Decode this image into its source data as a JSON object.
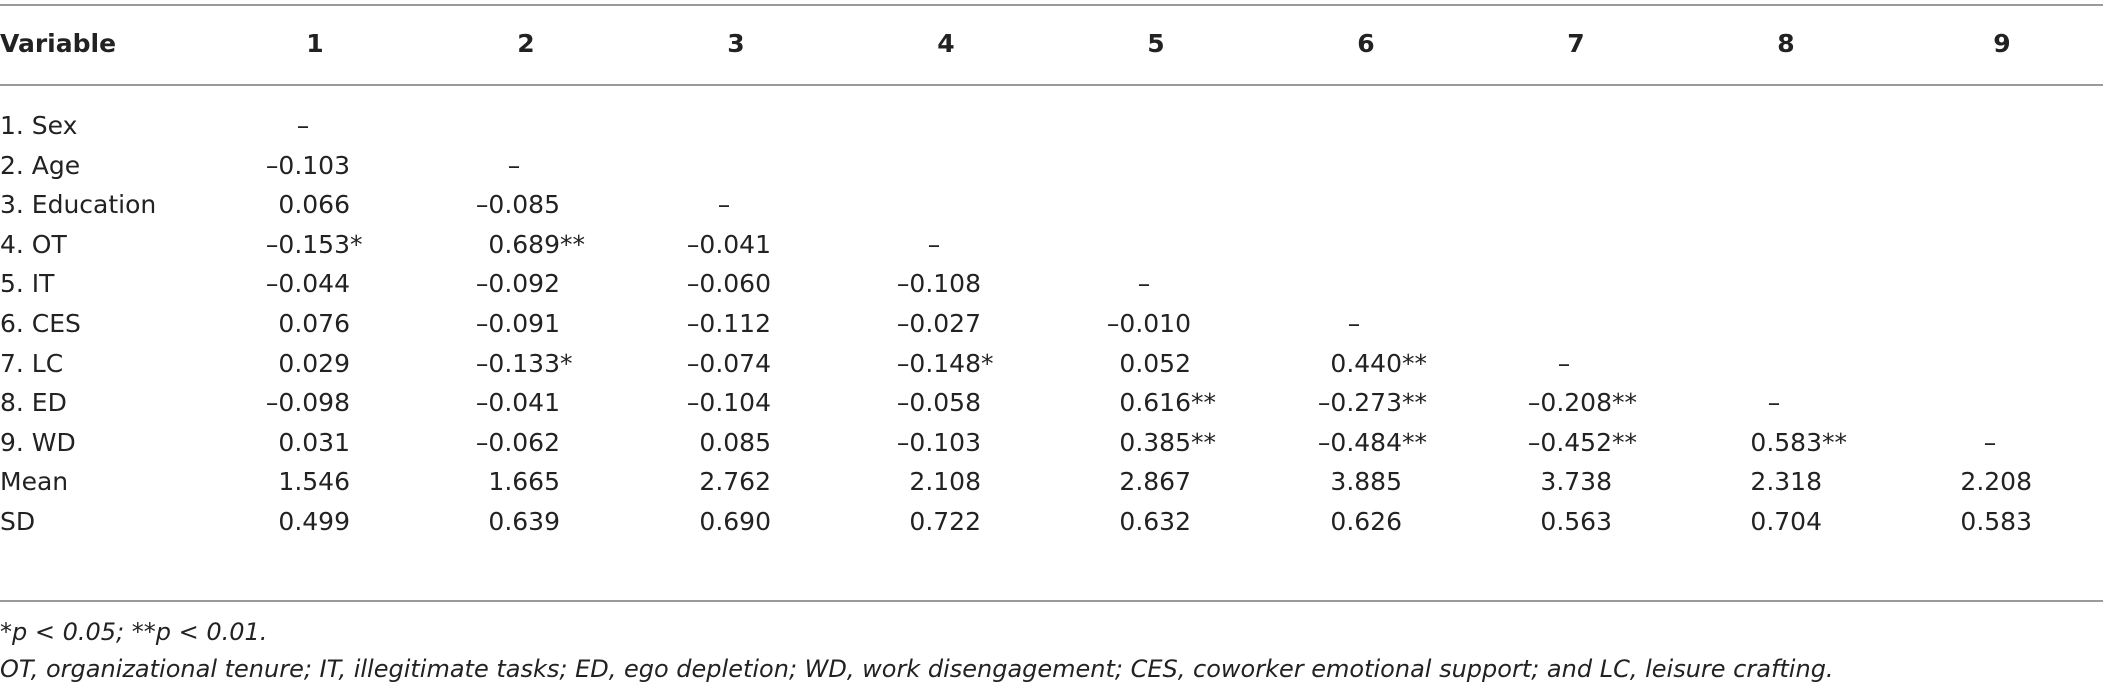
{
  "table": {
    "header": [
      "Variable",
      "1",
      "2",
      "3",
      "4",
      "5",
      "6",
      "7",
      "8",
      "9"
    ],
    "rows": [
      [
        "1. Sex",
        "–"
      ],
      [
        "2. Age",
        "–0.103",
        "–"
      ],
      [
        "3. Education",
        "0.066",
        "–0.085",
        "–"
      ],
      [
        "4. OT",
        "–0.153*",
        "0.689**",
        "–0.041",
        "–"
      ],
      [
        "5. IT",
        "–0.044",
        "–0.092",
        "–0.060",
        "–0.108",
        "–"
      ],
      [
        "6. CES",
        "0.076",
        "–0.091",
        "–0.112",
        "–0.027",
        "–0.010",
        "–"
      ],
      [
        "7. LC",
        "0.029",
        "–0.133*",
        "–0.074",
        "–0.148*",
        "0.052",
        "0.440**",
        "–"
      ],
      [
        "8. ED",
        "–0.098",
        "–0.041",
        "–0.104",
        "–0.058",
        "0.616**",
        "–0.273**",
        "–0.208**",
        "–"
      ],
      [
        "9. WD",
        "0.031",
        "–0.062",
        "0.085",
        "–0.103",
        "0.385**",
        "–0.484**",
        "–0.452**",
        "0.583**",
        "–"
      ],
      [
        "Mean",
        "1.546",
        "1.665",
        "2.762",
        "2.108",
        "2.867",
        "3.885",
        "3.738",
        "2.318",
        "2.208"
      ],
      [
        "SD",
        "0.499",
        "0.639",
        "0.690",
        "0.722",
        "0.632",
        "0.626",
        "0.563",
        "0.704",
        "0.583"
      ]
    ]
  },
  "notes": [
    "*p < 0.05; **p < 0.01.",
    "OT, organizational tenure; IT, illegitimate tasks; ED, ego depletion; WD, work disengagement; CES, coworker emotional support; and LC, leisure crafting."
  ]
}
